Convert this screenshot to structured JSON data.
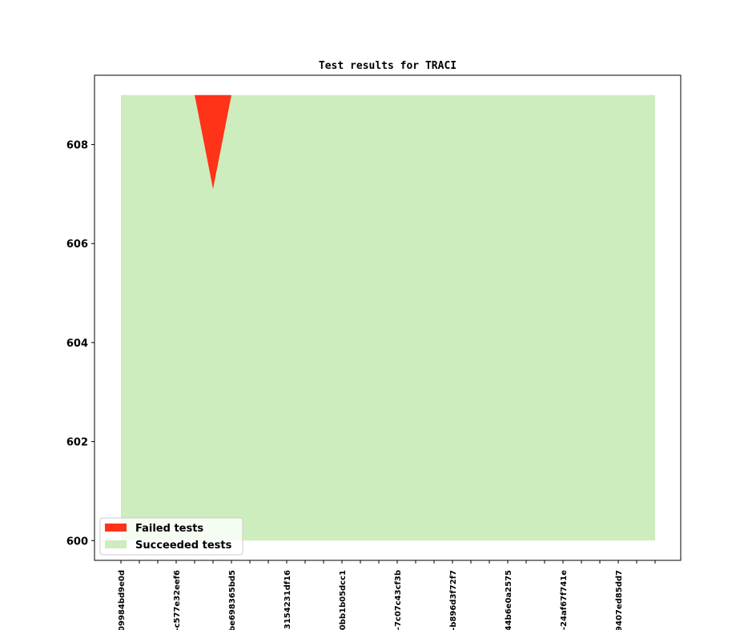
{
  "chart_data": {
    "type": "area",
    "title": "Test results for TRACI",
    "xlabel": "",
    "ylabel": "",
    "ylim": [
      599.6,
      609.4
    ],
    "yticks": [
      600,
      602,
      604,
      606,
      608
    ],
    "x_count": 30,
    "x_tick_labels": [
      "09984bd9e0d",
      "",
      "",
      "-c577e32eef6",
      "",
      "",
      "be698365bd5",
      "",
      "",
      "3154231df16",
      "",
      "",
      "0bb1b05dcc1",
      "",
      "",
      "-7c07c43cf3b",
      "",
      "",
      "-b896d3f72f7",
      "",
      "",
      "44b6e0a2575",
      "",
      "",
      "-24af67f741e",
      "",
      "",
      "9407ed85dd7",
      "",
      ""
    ],
    "series": [
      {
        "name": "Failed tests",
        "color": "#ff3318",
        "values": [
          0,
          0,
          0,
          0,
          0,
          1.9,
          0,
          0,
          0,
          0,
          0,
          0,
          0,
          0,
          0,
          0,
          0,
          0,
          0,
          0,
          0,
          0,
          0,
          0,
          0,
          0,
          0,
          0,
          0,
          0
        ]
      },
      {
        "name": "Succeeded tests",
        "color": "#ceedbe",
        "values": [
          609,
          609,
          609,
          609,
          609,
          607.1,
          609,
          609,
          609,
          609,
          609,
          609,
          609,
          609,
          609,
          609,
          609,
          609,
          609,
          609,
          609,
          609,
          609,
          609,
          609,
          609,
          609,
          609,
          609,
          609
        ]
      }
    ],
    "legend": {
      "placement": "lower-left"
    },
    "grid": false
  }
}
